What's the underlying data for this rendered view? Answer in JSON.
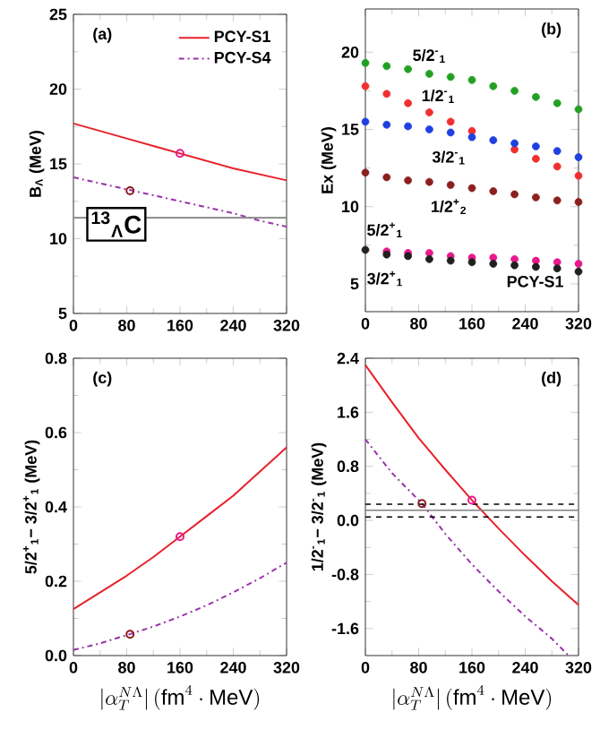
{
  "chart_data": [
    {
      "type": "line",
      "title": "(a)",
      "ylabel": "B$_{Λ}$ (MeV)",
      "xlim": [
        0,
        320
      ],
      "ylim": [
        5,
        25
      ],
      "xticks": [
        0,
        80,
        160,
        240,
        320
      ],
      "yticks": [
        5,
        10,
        15,
        20,
        25
      ],
      "legend": "top right",
      "annotations": [
        "$^{13}$$_{Λ}$C"
      ],
      "ref_lines": [
        {
          "axis": "y",
          "value": 11.4,
          "color": "#808080"
        }
      ],
      "series": [
        {
          "name": "PCY-S1",
          "color": "#e8202a",
          "line_style": "solid",
          "x": [
            0,
            40,
            80,
            120,
            160,
            200,
            240,
            280,
            320
          ],
          "values": [
            17.7,
            17.2,
            16.7,
            16.2,
            15.7,
            15.2,
            14.7,
            14.3,
            13.9
          ]
        },
        {
          "name": "PCY-S4",
          "color": "#9933aa",
          "line_style": "dashdot",
          "x": [
            0,
            40,
            80,
            120,
            160,
            200,
            240,
            280,
            320
          ],
          "values": [
            14.1,
            13.7,
            13.3,
            12.9,
            12.5,
            12.1,
            11.7,
            11.2,
            10.8
          ]
        },
        {
          "type": "scatter",
          "color": "#e8198b",
          "marker": "circle",
          "x": [
            160
          ],
          "values": [
            15.7
          ]
        },
        {
          "type": "scatter",
          "color": "#8b1a1a",
          "marker": "circle",
          "x": [
            85
          ],
          "values": [
            13.2
          ]
        }
      ]
    },
    {
      "type": "scatter",
      "title": "(b)",
      "ylabel": "Ex (MeV)",
      "xlim": [
        0,
        320
      ],
      "ylim": [
        3.2,
        22.8
      ],
      "xticks": [
        0,
        80,
        160,
        240,
        320
      ],
      "yticks": [
        5,
        10,
        15,
        20
      ],
      "marker": "circle",
      "x": [
        0,
        32,
        64,
        96,
        128,
        160,
        192,
        224,
        256,
        288,
        320
      ],
      "annotations": [
        "PCY-S1"
      ],
      "series": [
        {
          "name": "5/2$^{-}$$_{1}$",
          "color": "#22a022",
          "values": [
            19.3,
            19.1,
            18.9,
            18.6,
            18.4,
            18.2,
            17.8,
            17.5,
            17.1,
            16.7,
            16.3
          ]
        },
        {
          "name": "1/2$^{-}$$_{1}$",
          "color": "#f03030",
          "values": [
            17.8,
            17.3,
            16.7,
            16.1,
            15.5,
            14.9,
            null,
            13.7,
            13.1,
            12.6,
            12.0
          ]
        },
        {
          "name": "3/2$^{-}$$_{1}$",
          "color": "#2040e0",
          "values": [
            15.5,
            15.3,
            15.2,
            15.0,
            14.8,
            14.5,
            14.3,
            14.1,
            13.9,
            13.6,
            13.2
          ]
        },
        {
          "name": "1/2$^{+}$$_{2}$",
          "color": "#8b2020",
          "values": [
            12.2,
            11.9,
            11.7,
            11.6,
            11.4,
            11.2,
            11.0,
            10.8,
            10.6,
            10.4,
            10.3
          ]
        },
        {
          "name": "5/2$^{+}$$_{1}$",
          "color": "#e8198b",
          "values": [
            null,
            7.1,
            7.0,
            7.0,
            6.8,
            6.7,
            6.7,
            6.6,
            6.5,
            6.4,
            6.3
          ]
        },
        {
          "name": "3/2$^{+}$$_{1}$",
          "color": "#202020",
          "values": [
            7.2,
            6.9,
            6.8,
            6.6,
            6.5,
            6.4,
            6.3,
            6.2,
            6.1,
            6.0,
            5.8
          ]
        }
      ]
    },
    {
      "type": "line",
      "title": "(c)",
      "xlabel": "|\\alpha_{T}^{N\\Lambda}|\\,(\\mathrm{fm}^{4}\\cdot\\mathrm{MeV})",
      "ylabel": "5/2$^{+}$$_{1}$− 3/2$^{+}$$_{1}$ (MeV)",
      "xlim": [
        0,
        320
      ],
      "ylim": [
        0,
        0.8
      ],
      "xticks": [
        0,
        80,
        160,
        240,
        320
      ],
      "yticks": [
        {
          "value": 0,
          "label": "0.0"
        },
        0.2,
        0.4,
        0.6,
        0.8
      ],
      "series": [
        {
          "color": "#e8202a",
          "line_style": "solid",
          "x": [
            0,
            40,
            80,
            120,
            160,
            200,
            240,
            280,
            320
          ],
          "values": [
            0.125,
            0.17,
            0.215,
            0.265,
            0.32,
            0.375,
            0.43,
            0.495,
            0.56
          ]
        },
        {
          "color": "#9933aa",
          "line_style": "dashdot",
          "x": [
            0,
            40,
            80,
            120,
            160,
            200,
            240,
            280,
            320
          ],
          "values": [
            0.015,
            0.033,
            0.055,
            0.078,
            0.105,
            0.135,
            0.17,
            0.208,
            0.25
          ]
        },
        {
          "type": "scatter",
          "color": "#e8198b",
          "marker": "circle",
          "x": [
            160
          ],
          "values": [
            0.32
          ]
        },
        {
          "type": "scatter",
          "color": "#8b1a1a",
          "marker": "circle",
          "x": [
            85
          ],
          "values": [
            0.057
          ]
        }
      ]
    },
    {
      "type": "line",
      "title": "(d)",
      "xlabel": "|\\alpha_{T}^{N\\Lambda}|\\,(\\mathrm{fm}^{4}\\cdot\\mathrm{MeV})",
      "ylabel": "1/2$^{-}$$_{1}$− 3/2$^{-}$$_{1}$ (MeV)",
      "xlim": [
        0,
        320
      ],
      "ylim": [
        -2.0,
        2.4
      ],
      "xticks": [
        0,
        80,
        160,
        240,
        320
      ],
      "yticks": [
        -1.6,
        -0.8,
        {
          "value": 0,
          "label": "0.0"
        },
        0.8,
        1.6,
        2.4
      ],
      "ref_lines": [
        {
          "axis": "y",
          "value": 0.24,
          "line_style": "dashed",
          "color": "#000000"
        },
        {
          "axis": "y",
          "value": 0.05,
          "line_style": "dashed",
          "color": "#000000"
        },
        {
          "axis": "y",
          "value": 0.15,
          "color": "#808080"
        }
      ],
      "series": [
        {
          "color": "#e8202a",
          "line_style": "solid",
          "x": [
            0,
            40,
            80,
            120,
            160,
            200,
            240,
            280,
            320
          ],
          "values": [
            2.3,
            1.75,
            1.22,
            0.75,
            0.3,
            -0.12,
            -0.52,
            -0.9,
            -1.25
          ]
        },
        {
          "color": "#9933aa",
          "line_style": "dashdot",
          "x": [
            0,
            40,
            85,
            120,
            160,
            200,
            240,
            280,
            305
          ],
          "values": [
            1.2,
            0.7,
            0.25,
            -0.2,
            -0.65,
            -1.05,
            -1.42,
            -1.75,
            -2.0
          ]
        },
        {
          "type": "scatter",
          "color": "#e8198b",
          "marker": "circle",
          "x": [
            160
          ],
          "values": [
            0.3
          ]
        },
        {
          "type": "scatter",
          "color": "#8b1a1a",
          "marker": "circle",
          "x": [
            85
          ],
          "values": [
            0.25
          ]
        }
      ]
    }
  ]
}
